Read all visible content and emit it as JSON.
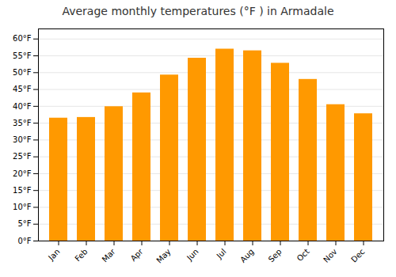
{
  "chart_data": {
    "type": "bar",
    "title": "Average monthly temperatures (°F ) in Armadale",
    "categories": [
      "Jan",
      "Feb",
      "Mar",
      "Apr",
      "May",
      "Jun",
      "Jul",
      "Aug",
      "Sep",
      "Oct",
      "Nov",
      "Dec"
    ],
    "values": [
      36.5,
      36.7,
      39.9,
      44.0,
      49.3,
      54.3,
      57.0,
      56.5,
      52.8,
      48.0,
      40.5,
      37.8
    ],
    "color": "#FF9900",
    "ylim": [
      0,
      63
    ],
    "yticks": [
      {
        "value": 0,
        "label": "0°F"
      },
      {
        "value": 5,
        "label": "5°F"
      },
      {
        "value": 10,
        "label": "10°F"
      },
      {
        "value": 15,
        "label": "15°F"
      },
      {
        "value": 20,
        "label": "20°F"
      },
      {
        "value": 25,
        "label": "25°F"
      },
      {
        "value": 30,
        "label": "30°F"
      },
      {
        "value": 35,
        "label": "35°F"
      },
      {
        "value": 40,
        "label": "40°F"
      },
      {
        "value": 45,
        "label": "45°F"
      },
      {
        "value": 50,
        "label": "50°F"
      },
      {
        "value": 55,
        "label": "55°F"
      },
      {
        "value": 60,
        "label": "60°F"
      }
    ],
    "grid": true
  }
}
